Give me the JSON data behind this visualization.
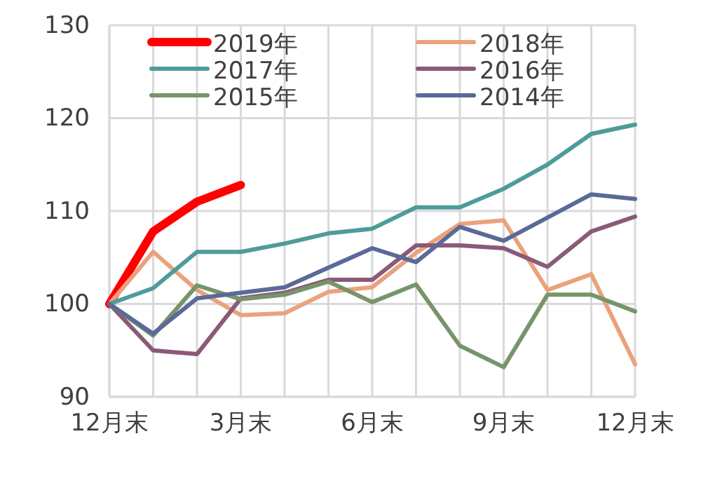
{
  "chart_data": {
    "type": "line",
    "categories": [
      "12月末",
      null,
      null,
      "3月末",
      null,
      null,
      "6月末",
      null,
      null,
      "9月末",
      null,
      null,
      "12月末"
    ],
    "ylim": [
      90,
      130
    ],
    "yticks": [
      90,
      100,
      110,
      120,
      130
    ],
    "grid": true,
    "legend": "top",
    "line_style": "solid",
    "marker": "none",
    "series": [
      {
        "name": "2019年",
        "color": "#ff0000",
        "values": [
          100,
          107.8,
          111,
          112.8,
          null,
          null,
          null,
          null,
          null,
          null,
          null,
          null,
          null
        ]
      },
      {
        "name": "2018年",
        "color": "#eba27c",
        "values": [
          100,
          105.6,
          101.5,
          98.8,
          99,
          101.3,
          101.8,
          105.5,
          108.6,
          109,
          101.5,
          103.2,
          93.5
        ]
      },
      {
        "name": "2017年",
        "color": "#4e9c99",
        "values": [
          100,
          101.7,
          105.6,
          105.6,
          106.5,
          107.6,
          108.1,
          110.4,
          110.4,
          112.4,
          115,
          118.3,
          119.3
        ]
      },
      {
        "name": "2016年",
        "color": "#8a5a78",
        "values": [
          100,
          95,
          94.6,
          100.6,
          101.2,
          102.6,
          102.6,
          106.3,
          106.3,
          106,
          104,
          107.8,
          109.4
        ]
      },
      {
        "name": "2015年",
        "color": "#77946a",
        "values": [
          100,
          96.6,
          102,
          100.5,
          101,
          102.4,
          100.2,
          102.1,
          95.5,
          93.2,
          101,
          101,
          99.2
        ]
      },
      {
        "name": "2014年",
        "color": "#5a6a98",
        "values": [
          100,
          96.8,
          100.6,
          101.2,
          101.8,
          103.9,
          106,
          104.5,
          108.3,
          106.8,
          109.3,
          111.8,
          111.3
        ]
      }
    ]
  }
}
